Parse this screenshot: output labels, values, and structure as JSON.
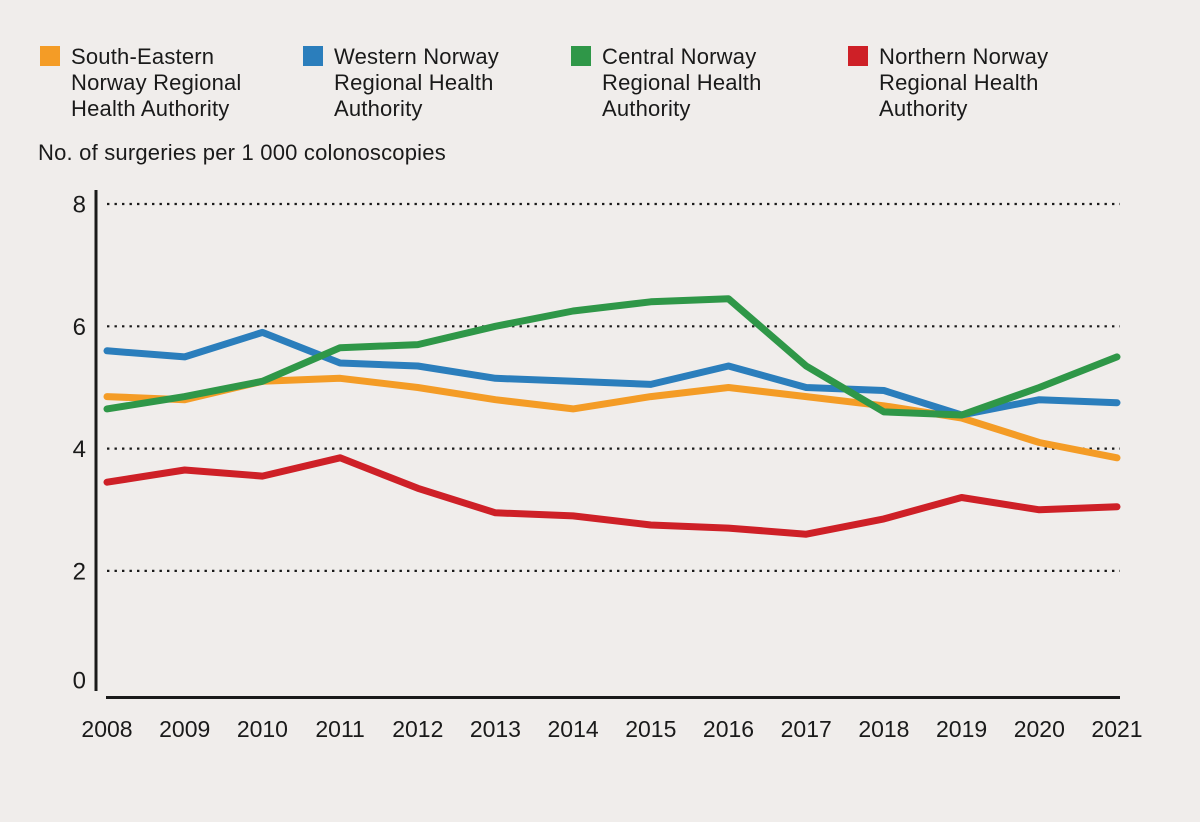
{
  "page": {
    "background": "#F0EDEB",
    "text_color": "#1A1A1A"
  },
  "legend": {
    "items": [
      {
        "label": "South-Eastern Norway Regional Health Authority",
        "color": "#F49C26"
      },
      {
        "label": "Western Norway Regional Health Authority",
        "color": "#2B7EBC"
      },
      {
        "label": "Central Norway Regional Health Authority",
        "color": "#2F9748"
      },
      {
        "label": "Northern Norway Regional Health Authority",
        "color": "#CE2027"
      }
    ]
  },
  "chart_data": {
    "type": "line",
    "title": "No. of surgeries per 1 000 colonoscopies",
    "xlabel": "",
    "ylabel": "No. of surgeries per 1 000 colonoscopies",
    "categories": [
      2008,
      2009,
      2010,
      2011,
      2012,
      2013,
      2014,
      2015,
      2016,
      2017,
      2018,
      2019,
      2020,
      2021
    ],
    "series": [
      {
        "name": "South-Eastern Norway Regional Health Authority",
        "color": "#F49C26",
        "values": [
          4.85,
          4.8,
          5.1,
          5.15,
          5.0,
          4.8,
          4.65,
          4.85,
          5.0,
          4.85,
          4.7,
          4.5,
          4.1,
          3.85
        ]
      },
      {
        "name": "Western Norway Regional Health Authority",
        "color": "#2B7EBC",
        "values": [
          5.6,
          5.5,
          5.9,
          5.4,
          5.35,
          5.15,
          5.1,
          5.05,
          5.35,
          5.0,
          4.95,
          4.55,
          4.8,
          4.75
        ]
      },
      {
        "name": "Central Norway Regional Health Authority",
        "color": "#2F9748",
        "values": [
          4.65,
          4.85,
          5.1,
          5.65,
          5.7,
          6.0,
          6.25,
          6.4,
          6.45,
          5.35,
          4.6,
          4.55,
          5.0,
          5.5
        ]
      },
      {
        "name": "Northern Norway Regional Health Authority",
        "color": "#CE2027",
        "values": [
          3.45,
          3.65,
          3.55,
          3.85,
          3.35,
          2.95,
          2.9,
          2.75,
          2.7,
          2.6,
          2.85,
          3.2,
          3.0,
          3.05
        ]
      }
    ],
    "ylim": [
      0,
      8
    ],
    "yticks": [
      0,
      2,
      4,
      6,
      8
    ],
    "grid": "horizontal dotted gridlines at y = 2, 4, 6, 8",
    "legend_position": "top"
  }
}
